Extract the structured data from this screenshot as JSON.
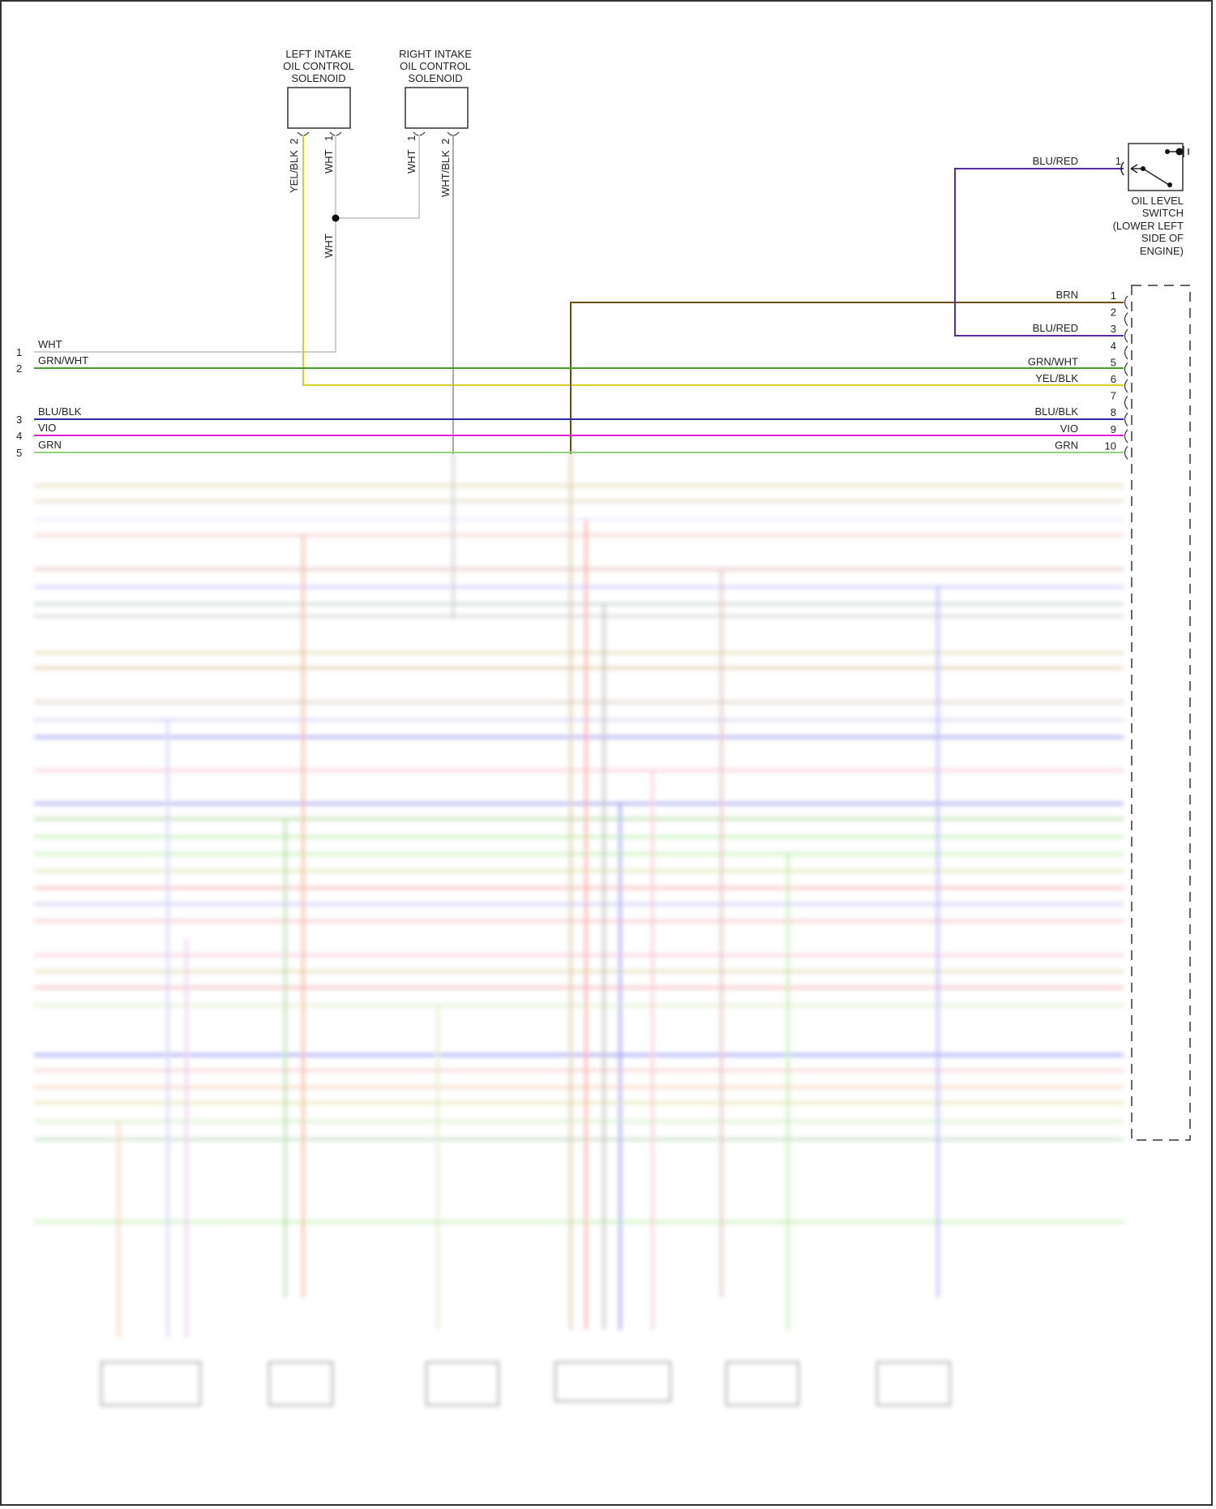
{
  "components": {
    "left_solenoid": {
      "label": [
        "LEFT INTAKE",
        "OIL CONTROL",
        "SOLENOID"
      ],
      "pins": [
        {
          "num": "2",
          "wire": "YEL/BLK"
        },
        {
          "num": "1",
          "wire": "WHT"
        }
      ]
    },
    "right_solenoid": {
      "label": [
        "RIGHT INTAKE",
        "OIL CONTROL",
        "SOLENOID"
      ],
      "pins": [
        {
          "num": "1",
          "wire": "WHT"
        },
        {
          "num": "2",
          "wire": "WHT/BLK"
        }
      ]
    },
    "splice_wire": "WHT",
    "oil_level_switch": {
      "label": [
        "OIL LEVEL",
        "SWITCH",
        "(LOWER LEFT",
        "SIDE OF",
        "ENGINE)"
      ],
      "pin": "1",
      "wire": "BLU/RED"
    }
  },
  "left_connector": [
    {
      "num": "1",
      "wire": "WHT",
      "color": "#cccccc"
    },
    {
      "num": "2",
      "wire": "GRN/WHT",
      "color": "#4a9a2a"
    },
    {
      "num": "3",
      "wire": "BLU/BLK",
      "color": "#2a2aa8"
    },
    {
      "num": "4",
      "wire": "VIO",
      "color": "#e020d0"
    },
    {
      "num": "5",
      "wire": "GRN",
      "color": "#8fd27a"
    }
  ],
  "right_connector": [
    {
      "num": "1",
      "wire": "BRN",
      "color": "#6b4e10"
    },
    {
      "num": "2",
      "wire": "",
      "color": ""
    },
    {
      "num": "3",
      "wire": "BLU/RED",
      "color": "#5a2aa0"
    },
    {
      "num": "4",
      "wire": "",
      "color": ""
    },
    {
      "num": "5",
      "wire": "GRN/WHT",
      "color": "#4a9a2a"
    },
    {
      "num": "6",
      "wire": "YEL/BLK",
      "color": "#d8d020"
    },
    {
      "num": "7",
      "wire": "",
      "color": ""
    },
    {
      "num": "8",
      "wire": "BLU/BLK",
      "color": "#2a2aa8"
    },
    {
      "num": "9",
      "wire": "VIO",
      "color": "#e020d0"
    },
    {
      "num": "10",
      "wire": "GRN",
      "color": "#8fd27a"
    }
  ],
  "colors": {
    "wht": "#cccccc",
    "yel_blk": "#d8d020",
    "wht_blk": "#aaaaaa",
    "brn": "#6b4e10",
    "blu_red": "#5a2aa0"
  }
}
